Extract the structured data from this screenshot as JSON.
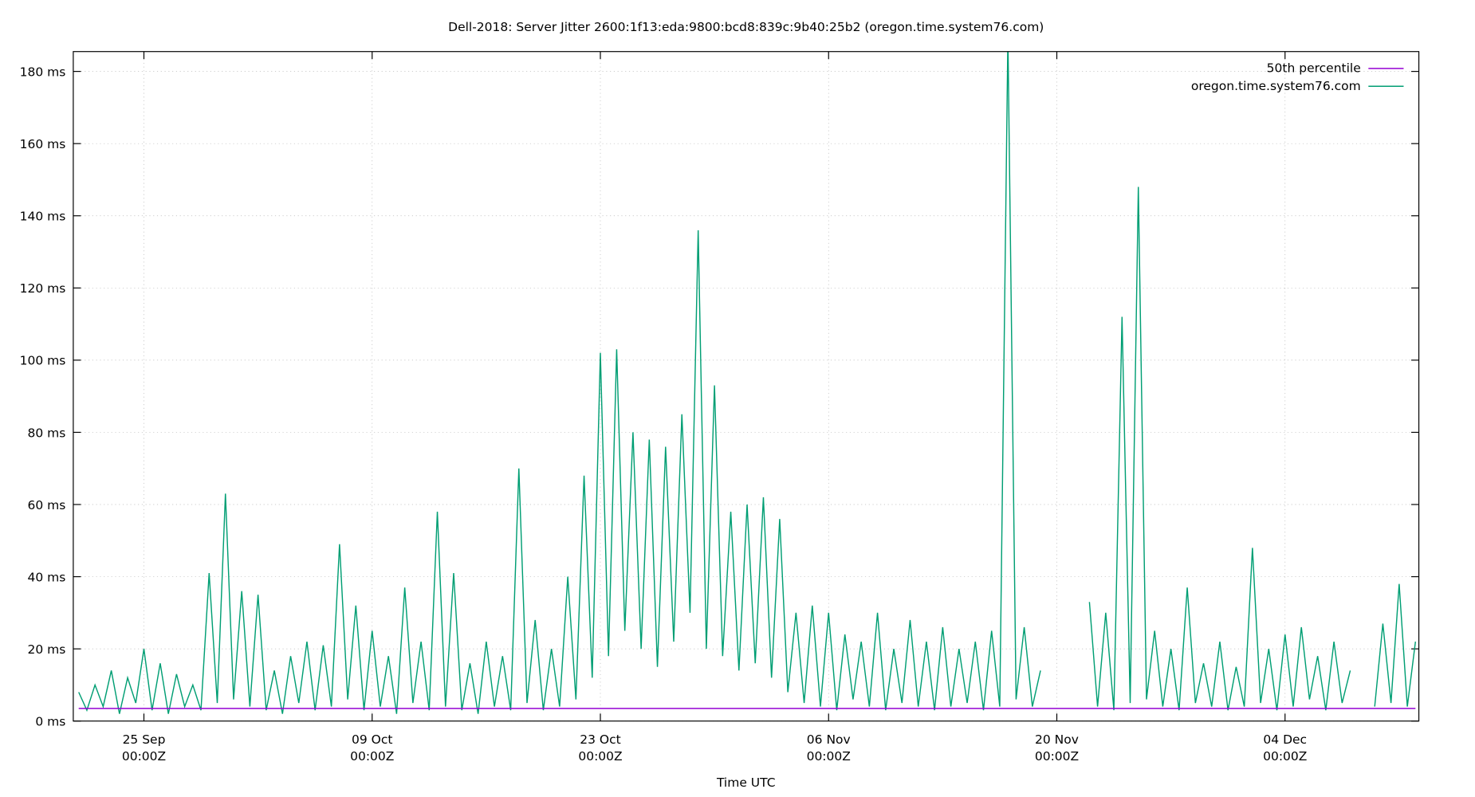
{
  "chart_data": {
    "type": "line",
    "title": "Dell-2018: Server Jitter 2600:1f13:eda:9800:bcd8:839c:9b40:25b2 (oregon.time.system76.com)",
    "x_label": "Time UTC",
    "xlim": [
      "20 Sep 16:00Z",
      "12 Dec 05:00Z"
    ],
    "xticks": [
      {
        "value": "25 Sep 00:00Z",
        "label": "25 Sep\n00:00Z"
      },
      {
        "value": "09 Oct 00:00Z",
        "label": "09 Oct\n00:00Z"
      },
      {
        "value": "23 Oct 00:00Z",
        "label": "23 Oct\n00:00Z"
      },
      {
        "value": "06 Nov 00:00Z",
        "label": "06 Nov\n00:00Z"
      },
      {
        "value": "20 Nov 00:00Z",
        "label": "20 Nov\n00:00Z"
      },
      {
        "value": "04 Dec 00:00Z",
        "label": "04 Dec\n00:00Z"
      }
    ],
    "ylim": [
      0,
      185.5
    ],
    "yticks": [
      {
        "value": 0,
        "label": "0 ms"
      },
      {
        "value": 20,
        "label": "20 ms"
      },
      {
        "value": 40,
        "label": "40 ms"
      },
      {
        "value": 60,
        "label": "60 ms"
      },
      {
        "value": 80,
        "label": "80 ms"
      },
      {
        "value": 100,
        "label": "100 ms"
      },
      {
        "value": 120,
        "label": "120 ms"
      },
      {
        "value": 140,
        "label": "140 ms"
      },
      {
        "value": 160,
        "label": "160 ms"
      },
      {
        "value": 180,
        "label": "180 ms"
      }
    ],
    "grid": true,
    "legend": "top-right",
    "x": [
      "21 Sep 00:00Z",
      "21 Sep 12:00Z",
      "22 Sep 00:00Z",
      "22 Sep 12:00Z",
      "23 Sep 00:00Z",
      "23 Sep 12:00Z",
      "24 Sep 00:00Z",
      "24 Sep 12:00Z",
      "25 Sep 00:00Z",
      "25 Sep 12:00Z",
      "26 Sep 00:00Z",
      "26 Sep 12:00Z",
      "27 Sep 00:00Z",
      "27 Sep 12:00Z",
      "28 Sep 00:00Z",
      "28 Sep 12:00Z",
      "29 Sep 00:00Z",
      "29 Sep 12:00Z",
      "30 Sep 00:00Z",
      "30 Sep 12:00Z",
      "01 Oct 00:00Z",
      "01 Oct 12:00Z",
      "02 Oct 00:00Z",
      "02 Oct 12:00Z",
      "03 Oct 00:00Z",
      "03 Oct 12:00Z",
      "04 Oct 00:00Z",
      "04 Oct 12:00Z",
      "05 Oct 00:00Z",
      "05 Oct 12:00Z",
      "06 Oct 00:00Z",
      "06 Oct 12:00Z",
      "07 Oct 00:00Z",
      "07 Oct 12:00Z",
      "08 Oct 00:00Z",
      "08 Oct 12:00Z",
      "09 Oct 00:00Z",
      "09 Oct 12:00Z",
      "10 Oct 00:00Z",
      "10 Oct 12:00Z",
      "11 Oct 00:00Z",
      "11 Oct 12:00Z",
      "12 Oct 00:00Z",
      "12 Oct 12:00Z",
      "13 Oct 00:00Z",
      "13 Oct 12:00Z",
      "14 Oct 00:00Z",
      "14 Oct 12:00Z",
      "15 Oct 00:00Z",
      "15 Oct 12:00Z",
      "16 Oct 00:00Z",
      "16 Oct 12:00Z",
      "17 Oct 00:00Z",
      "17 Oct 12:00Z",
      "18 Oct 00:00Z",
      "18 Oct 12:00Z",
      "19 Oct 00:00Z",
      "19 Oct 12:00Z",
      "20 Oct 00:00Z",
      "20 Oct 12:00Z",
      "21 Oct 00:00Z",
      "21 Oct 12:00Z",
      "22 Oct 00:00Z",
      "22 Oct 12:00Z",
      "23 Oct 00:00Z",
      "23 Oct 12:00Z",
      "24 Oct 00:00Z",
      "24 Oct 12:00Z",
      "25 Oct 00:00Z",
      "25 Oct 12:00Z",
      "26 Oct 00:00Z",
      "26 Oct 12:00Z",
      "27 Oct 00:00Z",
      "27 Oct 12:00Z",
      "28 Oct 00:00Z",
      "28 Oct 12:00Z",
      "29 Oct 00:00Z",
      "29 Oct 12:00Z",
      "30 Oct 00:00Z",
      "30 Oct 12:00Z",
      "31 Oct 00:00Z",
      "31 Oct 12:00Z",
      "01 Nov 00:00Z",
      "01 Nov 12:00Z",
      "02 Nov 00:00Z",
      "02 Nov 12:00Z",
      "03 Nov 00:00Z",
      "03 Nov 12:00Z",
      "04 Nov 00:00Z",
      "04 Nov 12:00Z",
      "05 Nov 00:00Z",
      "05 Nov 12:00Z",
      "06 Nov 00:00Z",
      "06 Nov 12:00Z",
      "07 Nov 00:00Z",
      "07 Nov 12:00Z",
      "08 Nov 00:00Z",
      "08 Nov 12:00Z",
      "09 Nov 00:00Z",
      "09 Nov 12:00Z",
      "10 Nov 00:00Z",
      "10 Nov 12:00Z",
      "11 Nov 00:00Z",
      "11 Nov 12:00Z",
      "12 Nov 00:00Z",
      "12 Nov 12:00Z",
      "13 Nov 00:00Z",
      "13 Nov 12:00Z",
      "14 Nov 00:00Z",
      "14 Nov 12:00Z",
      "15 Nov 00:00Z",
      "15 Nov 12:00Z",
      "16 Nov 00:00Z",
      "16 Nov 12:00Z",
      "17 Nov 00:00Z",
      "17 Nov 12:00Z",
      "18 Nov 00:00Z",
      "18 Nov 12:00Z",
      "19 Nov 00:00Z",
      "19 Nov 12:00Z",
      "20 Nov 00:00Z",
      "20 Nov 12:00Z",
      "21 Nov 00:00Z",
      "21 Nov 12:00Z",
      "22 Nov 00:00Z",
      "22 Nov 12:00Z",
      "23 Nov 00:00Z",
      "23 Nov 12:00Z",
      "24 Nov 00:00Z",
      "24 Nov 12:00Z",
      "25 Nov 00:00Z",
      "25 Nov 12:00Z",
      "26 Nov 00:00Z",
      "26 Nov 12:00Z",
      "27 Nov 00:00Z",
      "27 Nov 12:00Z",
      "28 Nov 00:00Z",
      "28 Nov 12:00Z",
      "29 Nov 00:00Z",
      "29 Nov 12:00Z",
      "30 Nov 00:00Z",
      "30 Nov 12:00Z",
      "01 Dec 00:00Z",
      "01 Dec 12:00Z",
      "02 Dec 00:00Z",
      "02 Dec 12:00Z",
      "03 Dec 00:00Z",
      "03 Dec 12:00Z",
      "04 Dec 00:00Z",
      "04 Dec 12:00Z",
      "05 Dec 00:00Z",
      "05 Dec 12:00Z",
      "06 Dec 00:00Z",
      "06 Dec 12:00Z",
      "07 Dec 00:00Z",
      "07 Dec 12:00Z",
      "08 Dec 00:00Z",
      "08 Dec 12:00Z",
      "09 Dec 00:00Z",
      "09 Dec 12:00Z",
      "10 Dec 00:00Z",
      "10 Dec 12:00Z",
      "11 Dec 00:00Z",
      "11 Dec 12:00Z",
      "12 Dec 00:00Z"
    ],
    "series": [
      {
        "name": "50th percentile",
        "color": "#9400d3",
        "x": [
          "21 Sep 00:00Z",
          "12 Dec 00:00Z"
        ],
        "values": [
          3.5,
          3.5
        ]
      },
      {
        "name": "oregon.time.system76.com",
        "color": "#009e73",
        "values": [
          8,
          3,
          10,
          4,
          14,
          2,
          12,
          5,
          20,
          3,
          16,
          2,
          13,
          4,
          10,
          3,
          41,
          5,
          63,
          6,
          36,
          4,
          35,
          3,
          14,
          2,
          18,
          5,
          22,
          3,
          21,
          4,
          49,
          6,
          32,
          3,
          25,
          4,
          18,
          2,
          37,
          5,
          22,
          3,
          58,
          4,
          41,
          3,
          16,
          2,
          22,
          4,
          18,
          3,
          70,
          5,
          28,
          3,
          20,
          4,
          40,
          6,
          68,
          12,
          102,
          18,
          103,
          25,
          80,
          20,
          78,
          15,
          76,
          22,
          85,
          30,
          136,
          20,
          93,
          18,
          58,
          14,
          60,
          16,
          62,
          12,
          56,
          8,
          30,
          5,
          32,
          4,
          30,
          3,
          24,
          6,
          22,
          4,
          30,
          3,
          20,
          5,
          28,
          4,
          22,
          3,
          26,
          4,
          20,
          5,
          22,
          3,
          25,
          4,
          190,
          6,
          26,
          4,
          14,
          null,
          null,
          null,
          null,
          null,
          33,
          4,
          30,
          3,
          112,
          5,
          148,
          6,
          25,
          4,
          20,
          3,
          37,
          5,
          16,
          4,
          22,
          3,
          15,
          4,
          48,
          5,
          20,
          3,
          24,
          4,
          26,
          6,
          18,
          3,
          22,
          5,
          14,
          null,
          null,
          4,
          27,
          5,
          38,
          4,
          22
        ]
      }
    ]
  }
}
